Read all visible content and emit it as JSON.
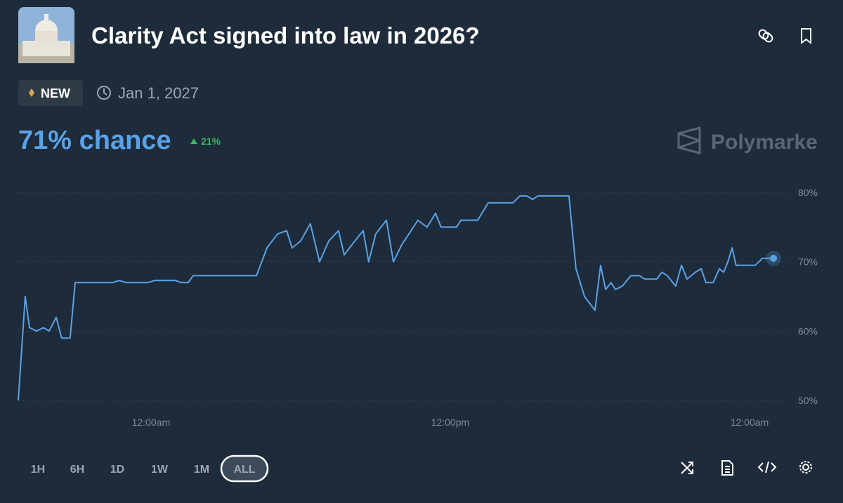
{
  "header": {
    "title": "Clarity Act signed into law in 2026?",
    "badge": "NEW",
    "date": "Jan 1, 2027",
    "chance": "71% chance",
    "change": "21%",
    "brand": "Polymarke"
  },
  "chart_data": {
    "type": "line",
    "color": "#5aa2e8",
    "grid": true,
    "x": [
      -5.32,
      -5.04,
      -4.87,
      -4.59,
      -4.31,
      -4.08,
      -3.8,
      -3.58,
      -3.24,
      -3.04,
      -1.55,
      -1.27,
      -0.99,
      -0.14,
      0.14,
      0.99,
      1.21,
      1.49,
      1.69,
      4.23,
      4.65,
      5.07,
      5.44,
      5.66,
      6.0,
      6.39,
      6.76,
      7.13,
      7.52,
      7.75,
      8.17,
      8.51,
      8.73,
      9.01,
      9.44,
      9.72,
      10.06,
      10.34,
      10.7,
      11.07,
      11.41,
      11.63,
      12.25,
      12.42,
      13.1,
      13.52,
      14.51,
      14.79,
      15.07,
      15.3,
      15.52,
      16.76,
      17.04,
      17.38,
      17.8,
      18.03,
      18.23,
      18.45,
      18.62,
      18.9,
      19.24,
      19.58,
      19.8,
      20.28,
      20.48,
      20.7,
      21.04,
      21.27,
      21.49,
      21.83,
      22.06,
      22.25,
      22.54,
      22.79,
      22.96,
      23.13,
      23.3,
      23.46,
      24.23,
      24.51,
      24.96
    ],
    "values": [
      50,
      65,
      60.5,
      60,
      60.5,
      60,
      62,
      59,
      59,
      67,
      67,
      67.3,
      67,
      67,
      67.3,
      67.3,
      67,
      67,
      68,
      68,
      72,
      74,
      74.5,
      72,
      73,
      75.5,
      70,
      73,
      74.5,
      71,
      73,
      74.5,
      70,
      74,
      76,
      70,
      72.5,
      74,
      76,
      75,
      77,
      75,
      75,
      76,
      76,
      78.5,
      78.5,
      79.5,
      79.5,
      79,
      79.5,
      79.5,
      69,
      65,
      63,
      69.5,
      66,
      67,
      66,
      66.5,
      68,
      68,
      67.5,
      67.5,
      68.5,
      68,
      66.5,
      69.5,
      67.5,
      68.5,
      69,
      67,
      67,
      69,
      68.5,
      70,
      72,
      69.5,
      69.5,
      70.5,
      70.5
    ],
    "xlim": [
      -5.32,
      25.2
    ],
    "ylim": [
      50,
      80
    ],
    "xticks": [
      {
        "value": 0,
        "label": "12:00am"
      },
      {
        "value": 12,
        "label": "12:00pm"
      },
      {
        "value": 24,
        "label": "12:00am"
      }
    ],
    "yticks": [
      {
        "value": 50,
        "label": "50%"
      },
      {
        "value": 60,
        "label": "60%"
      },
      {
        "value": 70,
        "label": "70%"
      },
      {
        "value": 80,
        "label": "80%"
      }
    ]
  },
  "range_buttons": [
    "1H",
    "6H",
    "1D",
    "1W",
    "1M",
    "ALL"
  ]
}
